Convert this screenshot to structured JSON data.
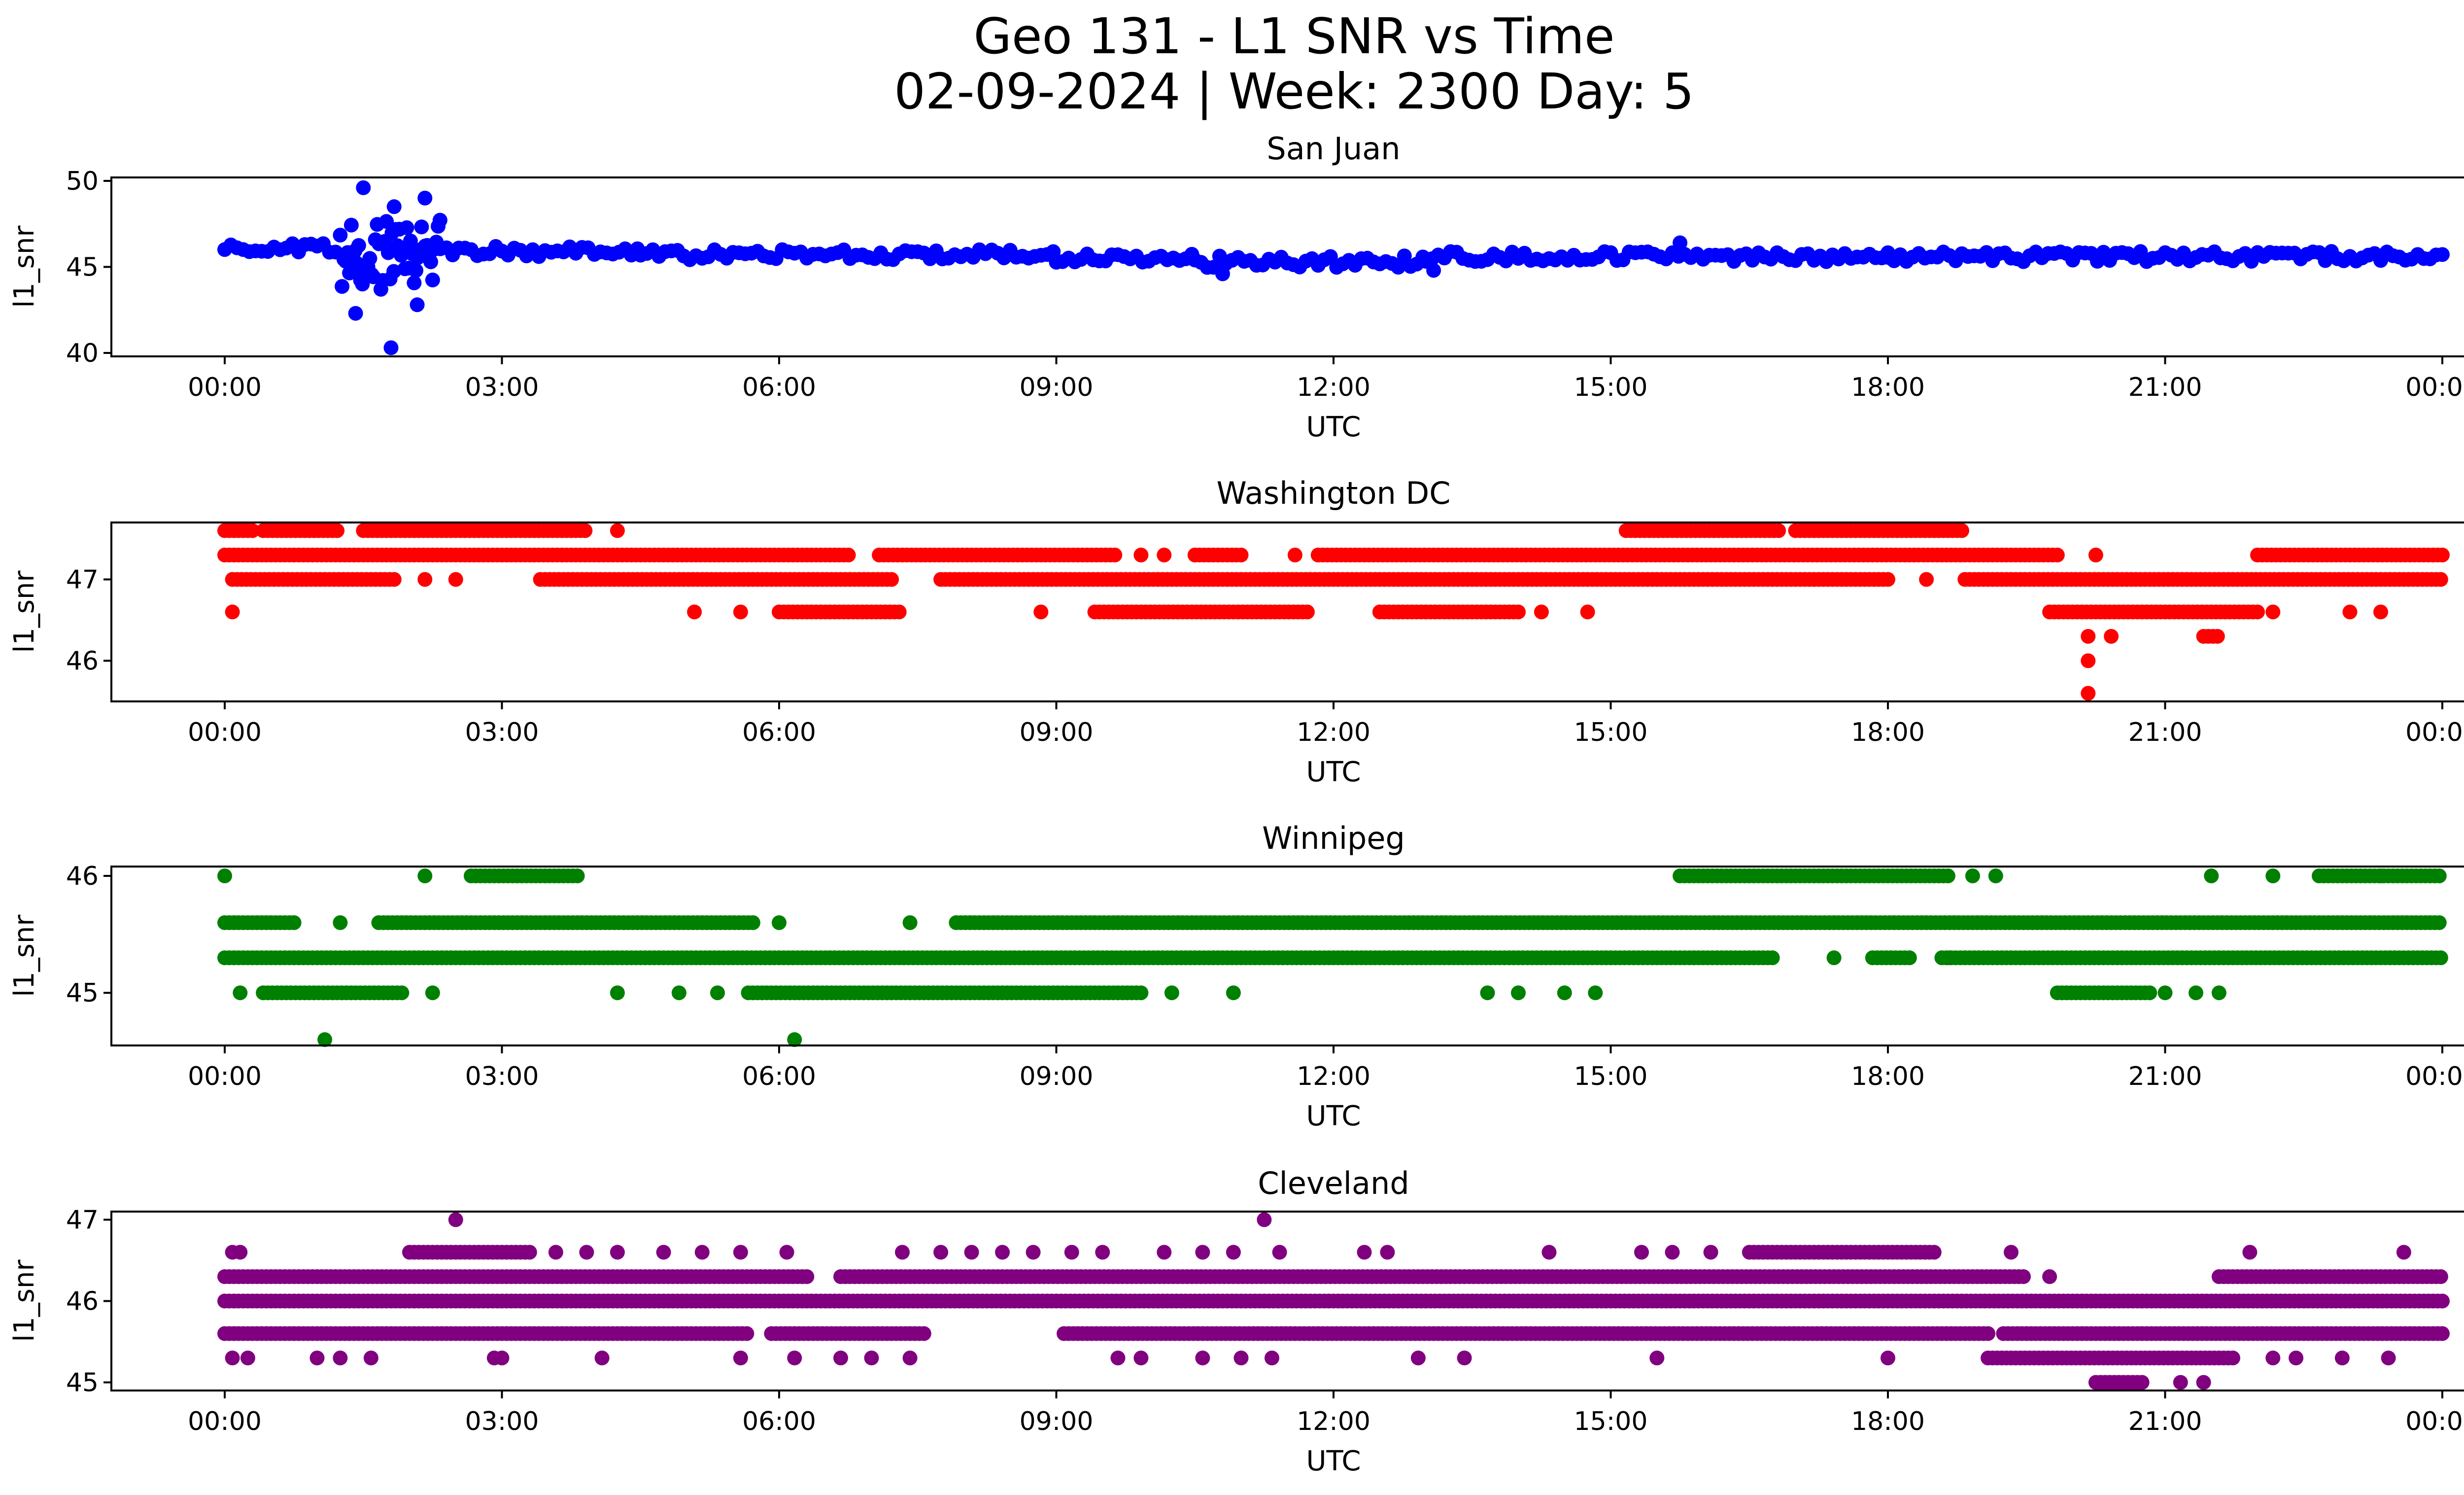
{
  "figure": {
    "title_line1": "Geo 131 - L1 SNR vs Time",
    "title_line2": "02-09-2024 | Week: 2300 Day: 5"
  },
  "chart_data": [
    {
      "type": "scatter",
      "title": "San Juan",
      "xlabel": "UTC",
      "ylabel": "l1_snr",
      "color": "#0000ff",
      "xlim": [
        "00:00",
        "00:00 (+1 day)"
      ],
      "x_ticks": [
        "00:00",
        "03:00",
        "06:00",
        "09:00",
        "12:00",
        "15:00",
        "18:00",
        "21:00",
        "00:00"
      ],
      "y_ticks": [
        40,
        45,
        50
      ],
      "ylim": [
        39.8,
        50.2
      ],
      "grid": false,
      "dense_bands": [
        {
          "from": "00:00",
          "to": "01:15",
          "level": 46.1,
          "spread": 0.25
        },
        {
          "from": "01:15",
          "to": "02:20",
          "level": 45.5,
          "spread": 2.8
        },
        {
          "from": "02:20",
          "to": "04:30",
          "level": 45.9,
          "spread": 0.3
        },
        {
          "from": "04:30",
          "to": "09:00",
          "level": 45.7,
          "spread": 0.3
        },
        {
          "from": "09:00",
          "to": "10:30",
          "level": 45.5,
          "spread": 0.3
        },
        {
          "from": "10:30",
          "to": "13:00",
          "level": 45.3,
          "spread": 0.35
        },
        {
          "from": "13:00",
          "to": "18:00",
          "level": 45.6,
          "spread": 0.3
        },
        {
          "from": "18:00",
          "to": "24:00",
          "level": 45.6,
          "spread": 0.3
        }
      ],
      "outliers": [
        {
          "time": "01:30",
          "value": 49.6
        },
        {
          "time": "01:50",
          "value": 48.5
        },
        {
          "time": "02:10",
          "value": 49.0
        },
        {
          "time": "01:48",
          "value": 40.3
        },
        {
          "time": "01:25",
          "value": 42.3
        },
        {
          "time": "02:05",
          "value": 42.8
        },
        {
          "time": "10:48",
          "value": 44.6
        },
        {
          "time": "13:05",
          "value": 44.8
        },
        {
          "time": "15:45",
          "value": 46.4
        }
      ]
    },
    {
      "type": "scatter",
      "title": "Washington DC",
      "xlabel": "UTC",
      "ylabel": "l1_snr",
      "color": "#ff0000",
      "xlim": [
        "00:00",
        "00:00 (+1 day)"
      ],
      "x_ticks": [
        "00:00",
        "03:00",
        "06:00",
        "09:00",
        "12:00",
        "15:00",
        "18:00",
        "21:00",
        "00:00"
      ],
      "y_ticks": [
        46,
        47
      ],
      "ylim": [
        45.5,
        47.7
      ],
      "grid": false,
      "levels": [
        {
          "value": 47.6,
          "segments": [
            [
              "00:00",
              "00:20"
            ],
            [
              "00:25",
              "01:15"
            ],
            [
              "01:30",
              "03:55"
            ],
            [
              "15:10",
              "16:50"
            ],
            [
              "17:00",
              "18:50"
            ]
          ],
          "sparse": [
            [
              "04:15",
              47.6
            ]
          ]
        },
        {
          "value": 47.3,
          "segments": [
            [
              "00:00",
              "06:45"
            ],
            [
              "07:05",
              "09:40"
            ],
            [
              "10:30",
              "11:00"
            ],
            [
              "11:50",
              "19:50"
            ],
            [
              "22:00",
              "24:00"
            ]
          ],
          "sparse": [
            [
              "09:55",
              47.3
            ],
            [
              "10:10",
              47.3
            ],
            [
              "11:35",
              47.3
            ],
            [
              "20:15",
              47.3
            ]
          ]
        },
        {
          "value": 47.0,
          "segments": [
            [
              "00:05",
              "01:50"
            ],
            [
              "03:25",
              "07:15"
            ],
            [
              "07:45",
              "18:00"
            ],
            [
              "18:50",
              "24:00"
            ]
          ],
          "sparse": [
            [
              "02:10",
              47.0
            ],
            [
              "02:30",
              47.0
            ],
            [
              "18:25",
              47.0
            ]
          ]
        },
        {
          "value": 46.6,
          "segments": [
            [
              "06:00",
              "07:20"
            ],
            [
              "09:25",
              "11:45"
            ],
            [
              "12:30",
              "14:00"
            ],
            [
              "19:45",
              "22:00"
            ]
          ],
          "sparse": [
            [
              "00:05",
              46.6
            ],
            [
              "05:05",
              46.6
            ],
            [
              "05:35",
              46.6
            ],
            [
              "08:50",
              46.6
            ],
            [
              "14:15",
              46.6
            ],
            [
              "14:45",
              46.6
            ],
            [
              "22:10",
              46.6
            ],
            [
              "23:00",
              46.6
            ],
            [
              "23:20",
              46.6
            ]
          ]
        },
        {
          "value": 46.3,
          "segments": [
            [
              "21:25",
              "21:35"
            ]
          ],
          "sparse": [
            [
              "20:10",
              46.3
            ],
            [
              "20:25",
              46.3
            ]
          ]
        },
        {
          "value": 46.0,
          "segments": [],
          "sparse": [
            [
              "20:10",
              46.0
            ]
          ]
        },
        {
          "value": 45.6,
          "segments": [],
          "sparse": [
            [
              "20:10",
              45.6
            ]
          ]
        }
      ]
    },
    {
      "type": "scatter",
      "title": "Winnipeg",
      "xlabel": "UTC",
      "ylabel": "l1_snr",
      "color": "#008000",
      "xlim": [
        "00:00",
        "00:00 (+1 day)"
      ],
      "x_ticks": [
        "00:00",
        "03:00",
        "06:00",
        "09:00",
        "12:00",
        "15:00",
        "18:00",
        "21:00",
        "00:00"
      ],
      "y_ticks": [
        45,
        46
      ],
      "ylim": [
        44.55,
        46.08
      ],
      "grid": false,
      "levels": [
        {
          "value": 46.0,
          "segments": [
            [
              "02:40",
              "03:50"
            ],
            [
              "15:45",
              "18:40"
            ],
            [
              "22:40",
              "24:00"
            ]
          ],
          "sparse": [
            [
              "00:00",
              46.0
            ],
            [
              "02:10",
              46.0
            ],
            [
              "18:55",
              46.0
            ],
            [
              "19:10",
              46.0
            ],
            [
              "21:30",
              46.0
            ],
            [
              "22:10",
              46.0
            ],
            [
              "23:20",
              46.0
            ]
          ]
        },
        {
          "value": 45.6,
          "segments": [
            [
              "00:00",
              "00:45"
            ],
            [
              "01:40",
              "05:45"
            ],
            [
              "07:55",
              "24:00"
            ]
          ],
          "sparse": [
            [
              "01:15",
              45.6
            ],
            [
              "06:00",
              45.6
            ],
            [
              "07:25",
              45.6
            ]
          ]
        },
        {
          "value": 45.3,
          "segments": [
            [
              "00:00",
              "16:45"
            ],
            [
              "17:50",
              "18:15"
            ],
            [
              "18:35",
              "24:00"
            ]
          ],
          "sparse": [
            [
              "17:25",
              45.3
            ],
            [
              "18:40",
              45.3
            ]
          ]
        },
        {
          "value": 45.0,
          "segments": [
            [
              "00:25",
              "01:55"
            ],
            [
              "05:40",
              "09:55"
            ],
            [
              "19:50",
              "20:50"
            ]
          ],
          "sparse": [
            [
              "00:10",
              45.0
            ],
            [
              "02:15",
              45.0
            ],
            [
              "04:15",
              45.0
            ],
            [
              "04:55",
              45.0
            ],
            [
              "05:20",
              45.0
            ],
            [
              "10:15",
              45.0
            ],
            [
              "10:55",
              45.0
            ],
            [
              "13:40",
              45.0
            ],
            [
              "14:00",
              45.0
            ],
            [
              "14:30",
              45.0
            ],
            [
              "14:50",
              45.0
            ],
            [
              "21:00",
              45.0
            ],
            [
              "21:20",
              45.0
            ],
            [
              "21:35",
              45.0
            ]
          ]
        },
        {
          "value": 44.6,
          "segments": [],
          "sparse": [
            [
              "01:05",
              44.6
            ],
            [
              "06:10",
              44.6
            ]
          ]
        }
      ]
    },
    {
      "type": "scatter",
      "title": "Cleveland",
      "xlabel": "UTC",
      "ylabel": "l1_snr",
      "color": "#800080",
      "xlim": [
        "00:00",
        "00:00 (+1 day)"
      ],
      "x_ticks": [
        "00:00",
        "03:00",
        "06:00",
        "09:00",
        "12:00",
        "15:00",
        "18:00",
        "21:00",
        "00:00"
      ],
      "y_ticks": [
        45,
        46,
        47
      ],
      "ylim": [
        44.9,
        47.1
      ],
      "grid": false,
      "levels": [
        {
          "value": 47.0,
          "segments": [],
          "sparse": [
            [
              "02:30",
              47.0
            ],
            [
              "11:15",
              47.0
            ]
          ]
        },
        {
          "value": 46.6,
          "segments": [
            [
              "02:00",
              "03:20"
            ],
            [
              "16:30",
              "18:30"
            ]
          ],
          "sparse": [
            [
              "00:05",
              46.6
            ],
            [
              "00:10",
              46.6
            ],
            [
              "03:35",
              46.6
            ],
            [
              "03:55",
              46.6
            ],
            [
              "04:15",
              46.6
            ],
            [
              "04:45",
              46.6
            ],
            [
              "05:10",
              46.6
            ],
            [
              "05:35",
              46.6
            ],
            [
              "06:05",
              46.6
            ],
            [
              "07:20",
              46.6
            ],
            [
              "07:45",
              46.6
            ],
            [
              "08:05",
              46.6
            ],
            [
              "08:25",
              46.6
            ],
            [
              "08:45",
              46.6
            ],
            [
              "09:10",
              46.6
            ],
            [
              "09:30",
              46.6
            ],
            [
              "10:10",
              46.6
            ],
            [
              "10:35",
              46.6
            ],
            [
              "10:55",
              46.6
            ],
            [
              "11:25",
              46.6
            ],
            [
              "12:20",
              46.6
            ],
            [
              "12:35",
              46.6
            ],
            [
              "14:20",
              46.6
            ],
            [
              "15:20",
              46.6
            ],
            [
              "15:40",
              46.6
            ],
            [
              "16:05",
              46.6
            ],
            [
              "19:20",
              46.6
            ],
            [
              "21:55",
              46.6
            ],
            [
              "23:35",
              46.6
            ]
          ]
        },
        {
          "value": 46.3,
          "segments": [
            [
              "00:00",
              "06:20"
            ],
            [
              "06:40",
              "19:30"
            ],
            [
              "21:35",
              "24:00"
            ]
          ],
          "sparse": [
            [
              "19:45",
              46.3
            ]
          ]
        },
        {
          "value": 46.0,
          "segments": [
            [
              "00:00",
              "24:00"
            ]
          ],
          "sparse": []
        },
        {
          "value": 45.6,
          "segments": [
            [
              "00:00",
              "05:40"
            ],
            [
              "05:55",
              "07:35"
            ],
            [
              "09:05",
              "19:05"
            ],
            [
              "19:15",
              "24:00"
            ]
          ],
          "sparse": []
        },
        {
          "value": 45.3,
          "segments": [
            [
              "19:05",
              "21:45"
            ]
          ],
          "sparse": [
            [
              "00:05",
              45.3
            ],
            [
              "00:15",
              45.3
            ],
            [
              "01:00",
              45.3
            ],
            [
              "01:15",
              45.3
            ],
            [
              "01:35",
              45.3
            ],
            [
              "02:55",
              45.3
            ],
            [
              "03:00",
              45.3
            ],
            [
              "04:05",
              45.3
            ],
            [
              "05:35",
              45.3
            ],
            [
              "06:10",
              45.3
            ],
            [
              "06:40",
              45.3
            ],
            [
              "07:00",
              45.3
            ],
            [
              "07:25",
              45.3
            ],
            [
              "09:40",
              45.3
            ],
            [
              "09:55",
              45.3
            ],
            [
              "10:35",
              45.3
            ],
            [
              "11:00",
              45.3
            ],
            [
              "11:20",
              45.3
            ],
            [
              "12:55",
              45.3
            ],
            [
              "13:25",
              45.3
            ],
            [
              "15:30",
              45.3
            ],
            [
              "18:00",
              45.3
            ],
            [
              "22:10",
              45.3
            ],
            [
              "22:25",
              45.3
            ],
            [
              "22:55",
              45.3
            ],
            [
              "23:25",
              45.3
            ]
          ]
        },
        {
          "value": 45.0,
          "segments": [
            [
              "20:15",
              "20:45"
            ]
          ],
          "sparse": [
            [
              "21:10",
              45.0
            ],
            [
              "21:25",
              45.0
            ]
          ]
        }
      ]
    }
  ]
}
